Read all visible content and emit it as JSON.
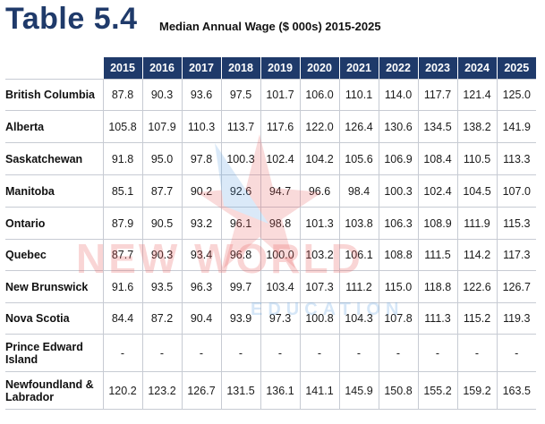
{
  "header": {
    "title": "Table 5.4",
    "subtitle": "Median Annual Wage ($ 000s) 2015-2025"
  },
  "watermark": {
    "line1": "NEW WORLD",
    "line2": "EDUCATION",
    "color_red": "#e85a5a",
    "color_blue": "#5aa0e0"
  },
  "table": {
    "years": [
      "2015",
      "2016",
      "2017",
      "2018",
      "2019",
      "2020",
      "2021",
      "2022",
      "2023",
      "2024",
      "2025"
    ],
    "rows": [
      {
        "label": "British Columbia",
        "values": [
          "87.8",
          "90.3",
          "93.6",
          "97.5",
          "101.7",
          "106.0",
          "110.1",
          "114.0",
          "117.7",
          "121.4",
          "125.0"
        ]
      },
      {
        "label": "Alberta",
        "values": [
          "105.8",
          "107.9",
          "110.3",
          "113.7",
          "117.6",
          "122.0",
          "126.4",
          "130.6",
          "134.5",
          "138.2",
          "141.9"
        ]
      },
      {
        "label": "Saskatchewan",
        "values": [
          "91.8",
          "95.0",
          "97.8",
          "100.3",
          "102.4",
          "104.2",
          "105.6",
          "106.9",
          "108.4",
          "110.5",
          "113.3"
        ]
      },
      {
        "label": "Manitoba",
        "values": [
          "85.1",
          "87.7",
          "90.2",
          "92.6",
          "94.7",
          "96.6",
          "98.4",
          "100.3",
          "102.4",
          "104.5",
          "107.0"
        ]
      },
      {
        "label": "Ontario",
        "values": [
          "87.9",
          "90.5",
          "93.2",
          "96.1",
          "98.8",
          "101.3",
          "103.8",
          "106.3",
          "108.9",
          "111.9",
          "115.3"
        ]
      },
      {
        "label": "Quebec",
        "values": [
          "87.7",
          "90.3",
          "93.4",
          "96.8",
          "100.0",
          "103.2",
          "106.1",
          "108.8",
          "111.5",
          "114.2",
          "117.3"
        ]
      },
      {
        "label": "New Brunswick",
        "values": [
          "91.6",
          "93.5",
          "96.3",
          "99.7",
          "103.4",
          "107.3",
          "111.2",
          "115.0",
          "118.8",
          "122.6",
          "126.7"
        ]
      },
      {
        "label": "Nova Scotia",
        "values": [
          "84.4",
          "87.2",
          "90.4",
          "93.9",
          "97.3",
          "100.8",
          "104.3",
          "107.8",
          "111.3",
          "115.2",
          "119.3"
        ]
      },
      {
        "label": "Prince Edward Island",
        "values": [
          "-",
          "-",
          "-",
          "-",
          "-",
          "-",
          "-",
          "-",
          "-",
          "-",
          "-"
        ]
      },
      {
        "label": "Newfoundland & Labrador",
        "values": [
          "120.2",
          "123.2",
          "126.7",
          "131.5",
          "136.1",
          "141.1",
          "145.9",
          "150.8",
          "155.2",
          "159.2",
          "163.5"
        ]
      }
    ]
  }
}
